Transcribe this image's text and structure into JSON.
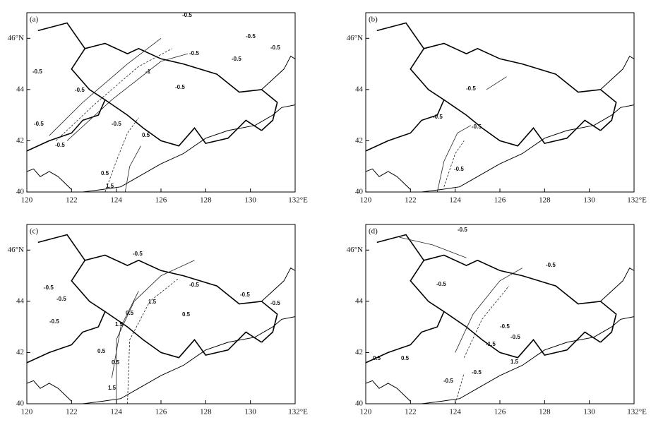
{
  "xlim": [
    120,
    132
  ],
  "ylim": [
    40,
    47
  ],
  "xticks": [
    120,
    122,
    124,
    126,
    128,
    130,
    {
      "value": 132,
      "label": "132°E"
    }
  ],
  "yticks": [
    40,
    42,
    44,
    {
      "value": 46,
      "label": "46°N"
    }
  ],
  "panels": [
    {
      "label": "(a)",
      "contour_labels": [
        "-0.5",
        "-0.5",
        "-0.5",
        "-0.5",
        "-0.5",
        "-0.5",
        "-0.5",
        "-1",
        "-0.5",
        "-0.5",
        "-0.5",
        "-0.5",
        "0.5",
        "1.5",
        "0.5"
      ]
    },
    {
      "label": "(b)",
      "contour_labels": [
        "-0.5",
        "-0.5",
        "-0.5",
        "-0.5"
      ]
    },
    {
      "label": "(c)",
      "contour_labels": [
        "-0.5",
        "-0.5",
        "-0.5",
        "-0.5",
        "-0.5",
        "-0.5",
        "-0.5",
        "0.5",
        "1.5",
        "0.5",
        "1.5",
        "0.5",
        "0.5",
        "1.5"
      ]
    },
    {
      "label": "(d)",
      "contour_labels": [
        "-0.5",
        "-0.5",
        "-0.5",
        "-0.5",
        "-0.5",
        "-1.5",
        "1.5",
        "-0.5",
        "0.5",
        "0.5",
        "-0.5"
      ]
    }
  ]
}
